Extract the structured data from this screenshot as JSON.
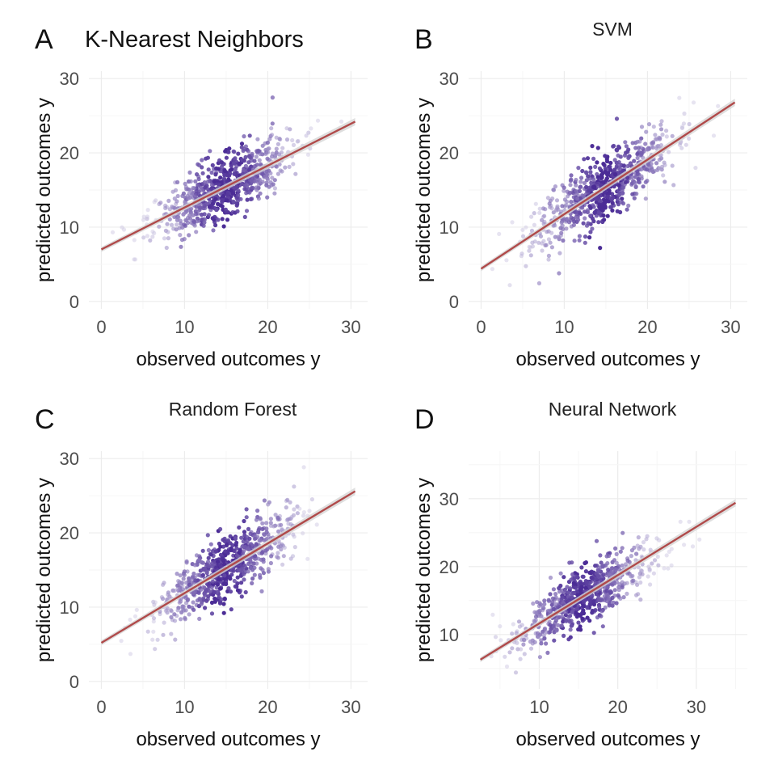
{
  "chart_data": [
    {
      "letter": "A",
      "type": "scatter",
      "title": "K-Nearest Neighbors",
      "xlabel": "observed outcomes y",
      "ylabel": "predicted outcomes y",
      "xlim": [
        -1.5,
        32
      ],
      "ylim": [
        -1,
        31
      ],
      "xticks": [
        0,
        10,
        20,
        30
      ],
      "yticks": [
        0,
        10,
        20,
        30
      ],
      "grid": true,
      "fit_line": {
        "x": [
          0,
          30.5
        ],
        "y": [
          7.0,
          24.2
        ]
      },
      "points": {
        "count": 700,
        "x_mean": 15.0,
        "x_sd": 4.3,
        "slope": 0.55,
        "noise_sd": 2.4,
        "x_min": 0.5,
        "x_max": 30.5,
        "seed": 11
      }
    },
    {
      "letter": "B",
      "type": "scatter",
      "title": "SVM",
      "xlabel": "observed outcomes y",
      "ylabel": "predicted outcomes y",
      "xlim": [
        -1.5,
        32
      ],
      "ylim": [
        -1,
        31
      ],
      "xticks": [
        0,
        10,
        20,
        30
      ],
      "yticks": [
        0,
        10,
        20,
        30
      ],
      "grid": true,
      "fit_line": {
        "x": [
          0,
          30.5
        ],
        "y": [
          4.4,
          26.8
        ]
      },
      "points": {
        "count": 700,
        "x_mean": 15.0,
        "x_sd": 4.3,
        "slope": 0.73,
        "noise_sd": 2.5,
        "x_min": 0.5,
        "x_max": 30.5,
        "seed": 23
      }
    },
    {
      "letter": "C",
      "type": "scatter",
      "title": "Random Forest",
      "xlabel": "observed outcomes y",
      "ylabel": "predicted outcomes y",
      "xlim": [
        -1.5,
        32
      ],
      "ylim": [
        -1,
        31
      ],
      "xticks": [
        0,
        10,
        20,
        30
      ],
      "yticks": [
        0,
        10,
        20,
        30
      ],
      "grid": true,
      "fit_line": {
        "x": [
          0,
          30.5
        ],
        "y": [
          5.2,
          25.6
        ]
      },
      "points": {
        "count": 700,
        "x_mean": 15.0,
        "x_sd": 4.3,
        "slope": 0.67,
        "noise_sd": 2.5,
        "x_min": 0.5,
        "x_max": 30.5,
        "seed": 37
      }
    },
    {
      "letter": "D",
      "type": "scatter",
      "title": "Neural Network",
      "xlabel": "observed outcomes y",
      "ylabel": "predicted outcomes y",
      "xlim": [
        1,
        36.5
      ],
      "ylim": [
        2,
        37
      ],
      "xticks": [
        10,
        20,
        30
      ],
      "yticks": [
        10,
        20,
        30
      ],
      "grid": true,
      "fit_line": {
        "x": [
          2.5,
          35
        ],
        "y": [
          6.3,
          29.4
        ]
      },
      "points": {
        "count": 700,
        "x_mean": 15.5,
        "x_sd": 4.5,
        "slope": 0.71,
        "noise_sd": 2.3,
        "x_min": 3,
        "x_max": 34,
        "seed": 53
      }
    }
  ],
  "colors": {
    "point_dark": "#4b2c96",
    "point_light": "#c9c3e0",
    "fit_line": "#b04a4a",
    "confidence_band": "#d6d6d6",
    "grid": "#ececec"
  }
}
